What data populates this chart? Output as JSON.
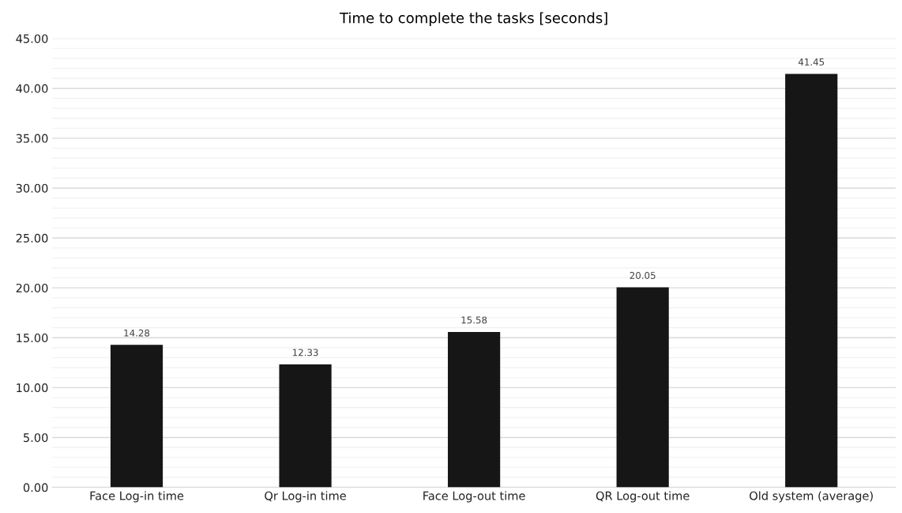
{
  "chart_data": {
    "type": "bar",
    "title": "Time to complete the tasks [seconds]",
    "categories": [
      "Face Log-in time",
      "Qr Log-in time",
      "Face Log-out time",
      "QR Log-out time",
      "Old system (average)"
    ],
    "values": [
      14.28,
      12.33,
      15.58,
      20.05,
      41.45
    ],
    "color": "#161616",
    "data_labels": true,
    "ylim": [
      0,
      45
    ],
    "yticks": [
      {
        "value": 0,
        "label": "0.00"
      },
      {
        "value": 5,
        "label": "5.00"
      },
      {
        "value": 10,
        "label": "10.00"
      },
      {
        "value": 15,
        "label": "15.00"
      },
      {
        "value": 20,
        "label": "20.00"
      },
      {
        "value": 25,
        "label": "25.00"
      },
      {
        "value": 30,
        "label": "30.00"
      },
      {
        "value": 35,
        "label": "35.00"
      },
      {
        "value": 40,
        "label": "40.00"
      },
      {
        "value": 45,
        "label": "45.00"
      }
    ],
    "grid": "y"
  }
}
